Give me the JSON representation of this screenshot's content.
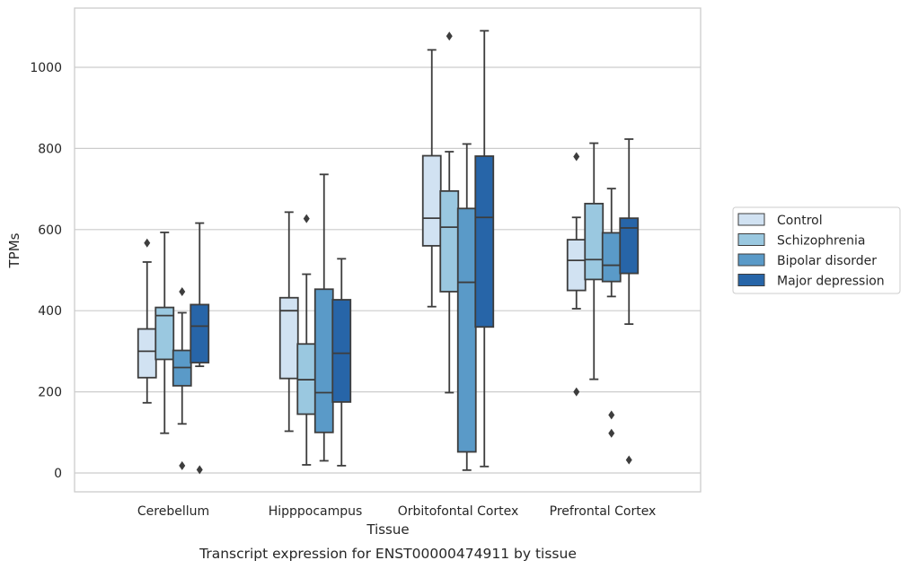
{
  "chart_data": {
    "type": "box",
    "caption": "Transcript expression for ENST00000474911 by tissue",
    "xlabel": "Tissue",
    "ylabel": "TPMs",
    "ylim": [
      -45,
      1145
    ],
    "yticks": [
      0,
      200,
      400,
      600,
      800,
      1000
    ],
    "grid": true,
    "legend_position": "right",
    "categories": [
      "Cerebellum",
      "Hipppocampus",
      "Orbitofontal Cortex",
      "Prefrontal Cortex"
    ],
    "series": [
      {
        "name": "Control",
        "color": "#d1e2f2",
        "boxes": [
          {
            "whislo": 173,
            "q1": 235,
            "med": 300,
            "q3": 355,
            "whishi": 520,
            "fliers": [
              567
            ]
          },
          {
            "whislo": 103,
            "q1": 233,
            "med": 400,
            "q3": 432,
            "whishi": 643,
            "fliers": []
          },
          {
            "whislo": 410,
            "q1": 560,
            "med": 628,
            "q3": 782,
            "whishi": 1043,
            "fliers": []
          },
          {
            "whislo": 405,
            "q1": 450,
            "med": 524,
            "q3": 575,
            "whishi": 630,
            "fliers": [
              780,
              200
            ]
          }
        ]
      },
      {
        "name": "Schizophrenia",
        "color": "#9ac8e0",
        "boxes": [
          {
            "whislo": 98,
            "q1": 280,
            "med": 388,
            "q3": 408,
            "whishi": 593,
            "fliers": []
          },
          {
            "whislo": 20,
            "q1": 145,
            "med": 230,
            "q3": 318,
            "whishi": 490,
            "fliers": [
              627
            ]
          },
          {
            "whislo": 198,
            "q1": 447,
            "med": 606,
            "q3": 695,
            "whishi": 792,
            "fliers": [
              1077
            ]
          },
          {
            "whislo": 231,
            "q1": 477,
            "med": 526,
            "q3": 664,
            "whishi": 813,
            "fliers": []
          }
        ]
      },
      {
        "name": "Bipolar disorder",
        "color": "#5a9ac8",
        "boxes": [
          {
            "whislo": 121,
            "q1": 215,
            "med": 260,
            "q3": 302,
            "whishi": 395,
            "fliers": [
              447,
              18
            ]
          },
          {
            "whislo": 30,
            "q1": 100,
            "med": 198,
            "q3": 453,
            "whishi": 736,
            "fliers": []
          },
          {
            "whislo": 7,
            "q1": 52,
            "med": 470,
            "q3": 652,
            "whishi": 811,
            "fliers": []
          },
          {
            "whislo": 435,
            "q1": 472,
            "med": 512,
            "q3": 592,
            "whishi": 701,
            "fliers": [
              143,
              98
            ]
          }
        ]
      },
      {
        "name": "Major depression",
        "color": "#2765a8",
        "boxes": [
          {
            "whislo": 263,
            "q1": 272,
            "med": 362,
            "q3": 415,
            "whishi": 616,
            "fliers": [
              8
            ]
          },
          {
            "whislo": 18,
            "q1": 175,
            "med": 295,
            "q3": 427,
            "whishi": 528,
            "fliers": []
          },
          {
            "whislo": 16,
            "q1": 360,
            "med": 630,
            "q3": 781,
            "whishi": 1090,
            "fliers": []
          },
          {
            "whislo": 367,
            "q1": 492,
            "med": 604,
            "q3": 628,
            "whishi": 823,
            "fliers": [
              32
            ]
          }
        ]
      }
    ]
  }
}
